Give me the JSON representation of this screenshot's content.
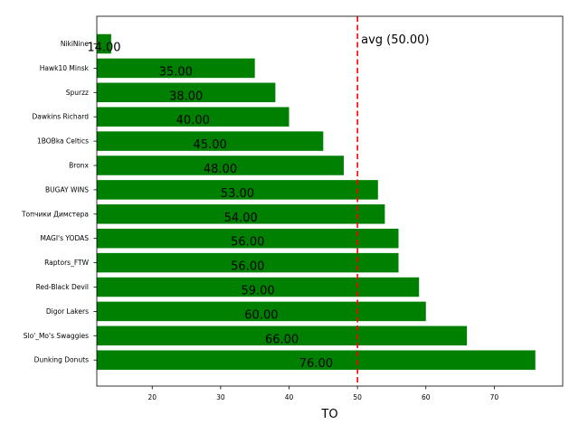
{
  "chart_data": {
    "type": "bar",
    "orientation": "horizontal",
    "categories": [
      "NikiNine",
      "Hawk10 Minsk",
      "Spurzz",
      "Dawkins Richard",
      "1BOBka Celtics",
      "Bronx",
      "BUGAY WINS",
      "Топчики Димстера",
      "MAGI's YODAS",
      "Raptors_FTW",
      "Red-Black Devil",
      "Digor Lakers",
      "Slo'_Mo's Swaggies",
      "Dunking Donuts"
    ],
    "values": [
      14,
      35,
      38,
      40,
      45,
      48,
      53,
      54,
      56,
      56,
      59,
      60,
      66,
      76
    ],
    "value_labels": [
      "14.00",
      "35.00",
      "38.00",
      "40.00",
      "45.00",
      "48.00",
      "53.00",
      "54.00",
      "56.00",
      "56.00",
      "59.00",
      "60.00",
      "66.00",
      "76.00"
    ],
    "xlabel": "TO",
    "ylabel": "",
    "title": "",
    "xlim": [
      11.9,
      80
    ],
    "xticks": [
      20,
      30,
      40,
      50,
      60,
      70
    ],
    "bar_color": "#008000",
    "grid": false,
    "reference_line": {
      "value": 50,
      "label": "avg (50.00)",
      "color": "#ff0000",
      "style": "dashed"
    }
  }
}
